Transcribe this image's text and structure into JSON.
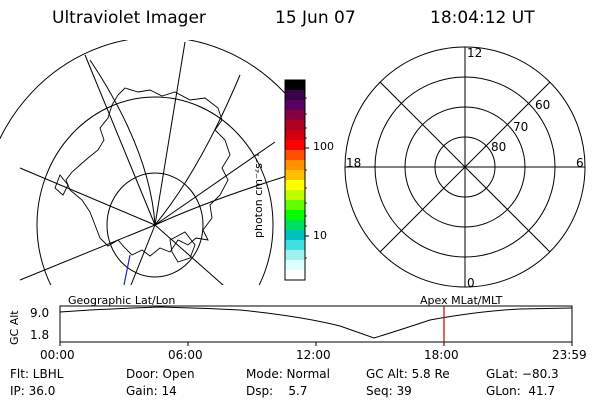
{
  "header": {
    "title": "Ultraviolet Imager",
    "date": "15 Jun 07",
    "time": "18:04:12 UT"
  },
  "colorbar": {
    "label": "photon cm⁻²s⁻¹",
    "ticks": [
      "100",
      "10"
    ],
    "colors": [
      "#000000",
      "#3a0048",
      "#5a0060",
      "#880040",
      "#b00020",
      "#d00010",
      "#ff0000",
      "#ff5000",
      "#ff9000",
      "#ffc000",
      "#ffff00",
      "#c0ff00",
      "#60ff00",
      "#00ff00",
      "#00e060",
      "#00c0c0",
      "#40e0e0",
      "#a0f0f0",
      "#e0ffff",
      "#ffffff"
    ]
  },
  "polar_plot": {
    "mlt_labels": {
      "top": "12",
      "left": "18",
      "right": "6",
      "bottom": "0"
    },
    "lat_labels": [
      "60",
      "70",
      "80"
    ]
  },
  "timeline": {
    "ylabel": "GC Alt",
    "ymax": "9.0",
    "ymin": "1.8",
    "left_title": "Geographic Lat/Lon",
    "right_title": "Apex  MLat/MLT",
    "ticks": [
      "00:00",
      "06:00",
      "12:00",
      "18:00",
      "23:59"
    ],
    "marker_color": "#cc0000"
  },
  "info": {
    "filter": "Flt: LBHL",
    "ip": "IP: 36.0",
    "door": "Door: Open",
    "gain": "Gain: 14",
    "mode": "Mode: Normal",
    "dsp": "Dsp:    5.7",
    "gc_alt": "GC Alt: 5.8 Re",
    "seq": "Seq: 39",
    "glat": "GLat: −80.3",
    "glon": "GLon:  41.7"
  }
}
